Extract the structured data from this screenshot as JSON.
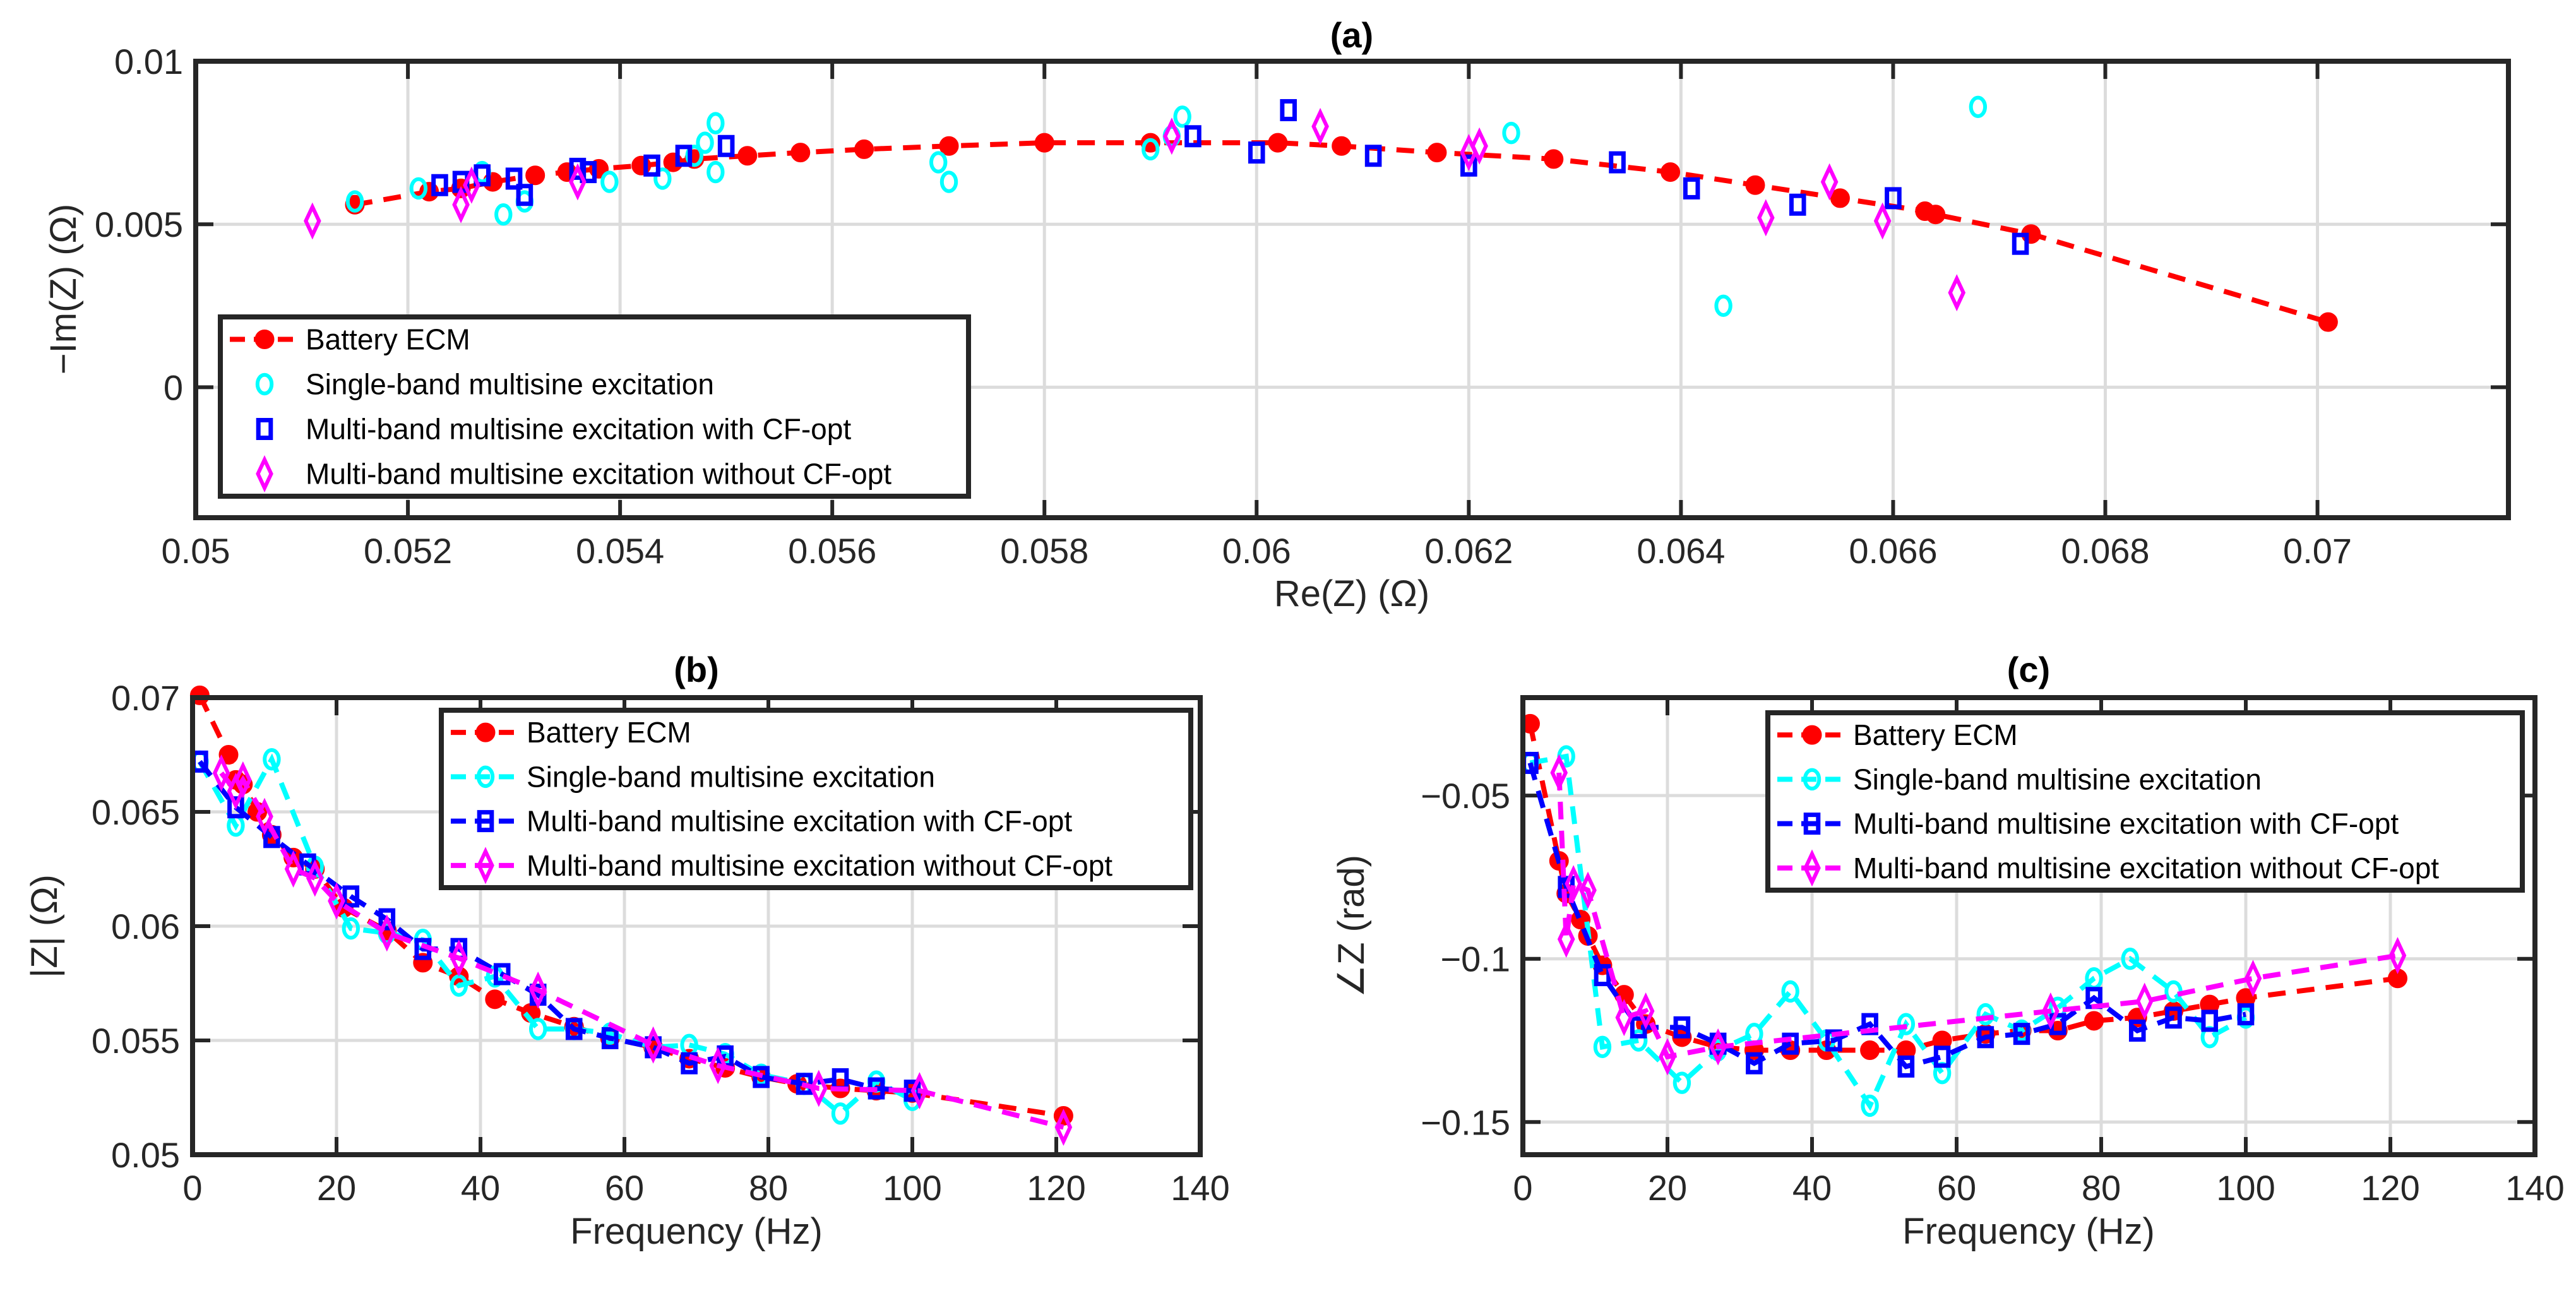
{
  "colors": {
    "ecm": "#ff0000",
    "single": "#00ffff",
    "cfopt": "#0000ff",
    "nocf": "#ff00ff",
    "grid": "#dcdcdc",
    "axis": "#262626"
  },
  "legend": [
    "Battery ECM",
    "Single-band multisine excitation",
    "Multi-band multisine excitation with CF-opt",
    "Multi-band multisine excitation without CF-opt"
  ],
  "chart_data": [
    {
      "id": "a",
      "type": "scatter",
      "title": "(a)",
      "xlabel": "Re(Z) (Ω)",
      "ylabel": "−Im(Z) (Ω)",
      "xlim": [
        0.05,
        0.0718
      ],
      "ylim": [
        -0.004,
        0.01
      ],
      "grid": true,
      "legend_placement": "bottom-left",
      "xticks": [
        0.05,
        0.052,
        0.054,
        0.056,
        0.058,
        0.06,
        0.062,
        0.064,
        0.066,
        0.068,
        0.07
      ],
      "xticklabels": [
        "0.05",
        "0.052",
        "0.054",
        "0.056",
        "0.058",
        "0.06",
        "0.062",
        "0.064",
        "0.066",
        "0.068",
        "0.07"
      ],
      "yticks": [
        0,
        0.005,
        0.01
      ],
      "yticklabels": [
        "0",
        "0.005",
        "0.01"
      ],
      "series": [
        {
          "name": "Battery ECM",
          "marker": "dot",
          "line": true,
          "color": "#ff0000",
          "x": [
            0.0515,
            0.0522,
            0.0525,
            0.0528,
            0.0532,
            0.0535,
            0.0538,
            0.0542,
            0.0545,
            0.0547,
            0.0552,
            0.0557,
            0.0563,
            0.0571,
            0.058,
            0.059,
            0.0602,
            0.0608,
            0.0617,
            0.0628,
            0.0639,
            0.0647,
            0.0655,
            0.0663,
            0.0664,
            0.0673,
            0.0701
          ],
          "y": [
            0.0056,
            0.006,
            0.0061,
            0.0063,
            0.0065,
            0.0066,
            0.0067,
            0.0068,
            0.0069,
            0.007,
            0.0071,
            0.0072,
            0.0073,
            0.0074,
            0.0075,
            0.0075,
            0.0075,
            0.0074,
            0.0072,
            0.007,
            0.0066,
            0.0062,
            0.0058,
            0.0054,
            0.0053,
            0.0047,
            0.002
          ]
        },
        {
          "name": "Single-band multisine excitation",
          "marker": "circle",
          "line": false,
          "color": "#00ffff",
          "x": [
            0.0515,
            0.0521,
            0.0527,
            0.0529,
            0.0531,
            0.0539,
            0.0544,
            0.0547,
            0.0548,
            0.0549,
            0.0549,
            0.057,
            0.0571,
            0.059,
            0.0592,
            0.0593,
            0.0624,
            0.0644,
            0.0668
          ],
          "y": [
            0.0057,
            0.0061,
            0.0066,
            0.0053,
            0.0057,
            0.0063,
            0.0064,
            0.0071,
            0.0075,
            0.0081,
            0.0066,
            0.0069,
            0.0063,
            0.0073,
            0.0077,
            0.0083,
            0.0078,
            0.0025,
            0.0086
          ]
        },
        {
          "name": "Multi-band multisine excitation with CF-opt",
          "marker": "square",
          "line": false,
          "color": "#0000ff",
          "x": [
            0.0523,
            0.0525,
            0.0527,
            0.053,
            0.0531,
            0.0536,
            0.0537,
            0.0543,
            0.0546,
            0.055,
            0.0594,
            0.06,
            0.0603,
            0.0611,
            0.062,
            0.0634,
            0.0641,
            0.0651,
            0.066,
            0.0672
          ],
          "y": [
            0.0062,
            0.0063,
            0.0065,
            0.0064,
            0.0059,
            0.0067,
            0.0066,
            0.0068,
            0.0071,
            0.0074,
            0.0077,
            0.0072,
            0.0085,
            0.0071,
            0.0068,
            0.0069,
            0.0061,
            0.0056,
            0.0058,
            0.0044
          ]
        },
        {
          "name": "Multi-band multisine excitation without CF-opt",
          "marker": "diamond",
          "line": false,
          "color": "#ff00ff",
          "x": [
            0.0511,
            0.0525,
            0.0526,
            0.0536,
            0.0592,
            0.0606,
            0.062,
            0.0621,
            0.0648,
            0.0654,
            0.0659,
            0.0666
          ],
          "y": [
            0.0051,
            0.0056,
            0.0062,
            0.0063,
            0.0077,
            0.008,
            0.0072,
            0.0074,
            0.0052,
            0.0063,
            0.0051,
            0.0029
          ]
        }
      ]
    },
    {
      "id": "b",
      "type": "line",
      "title": "(b)",
      "xlabel": "Frequency (Hz)",
      "ylabel": "|Z| (Ω)",
      "xlim": [
        0,
        140
      ],
      "ylim": [
        0.05,
        0.07
      ],
      "grid": true,
      "legend_placement": "top-right",
      "xticks": [
        0,
        20,
        40,
        60,
        80,
        100,
        120,
        140
      ],
      "xticklabels": [
        "0",
        "20",
        "40",
        "60",
        "80",
        "100",
        "120",
        "140"
      ],
      "yticks": [
        0.05,
        0.055,
        0.06,
        0.065,
        0.07
      ],
      "yticklabels": [
        "0.05",
        "0.055",
        "0.06",
        "0.065",
        "0.07"
      ],
      "series": [
        {
          "name": "Battery ECM",
          "marker": "dot",
          "line": true,
          "color": "#ff0000",
          "x": [
            1,
            5,
            6,
            7,
            9,
            11,
            14,
            17,
            21,
            27,
            32,
            37,
            42,
            47,
            53,
            58,
            64,
            69,
            74,
            79,
            84,
            90,
            95,
            100,
            121
          ],
          "y": [
            0.0701,
            0.0675,
            0.0664,
            0.0662,
            0.065,
            0.064,
            0.063,
            0.0625,
            0.0608,
            0.0598,
            0.0584,
            0.0578,
            0.0568,
            0.0562,
            0.0556,
            0.0551,
            0.0547,
            0.0542,
            0.0538,
            0.0534,
            0.0531,
            0.0529,
            0.0528,
            0.0527,
            0.0517
          ]
        },
        {
          "name": "Single-band multisine excitation",
          "marker": "circle",
          "line": true,
          "color": "#00ffff",
          "x": [
            1,
            6,
            11,
            17,
            22,
            27,
            32,
            37,
            42,
            48,
            53,
            58,
            64,
            69,
            74,
            79,
            85,
            90,
            95,
            100
          ],
          "y": [
            0.0672,
            0.0644,
            0.0673,
            0.0626,
            0.0599,
            0.0597,
            0.0594,
            0.0574,
            0.0578,
            0.0555,
            0.0555,
            0.0553,
            0.0547,
            0.0548,
            0.0544,
            0.0535,
            0.0531,
            0.0518,
            0.0532,
            0.0524
          ]
        },
        {
          "name": "Multi-band multisine excitation with CF-opt",
          "marker": "square",
          "line": true,
          "color": "#0000ff",
          "x": [
            1,
            6,
            11,
            16,
            22,
            27,
            32,
            37,
            43,
            48,
            53,
            58,
            64,
            69,
            74,
            79,
            85,
            90,
            95,
            100
          ],
          "y": [
            0.0672,
            0.0652,
            0.0639,
            0.0627,
            0.0613,
            0.0603,
            0.059,
            0.059,
            0.0579,
            0.057,
            0.0555,
            0.0551,
            0.0547,
            0.054,
            0.0543,
            0.0534,
            0.0531,
            0.0533,
            0.0529,
            0.0528
          ]
        },
        {
          "name": "Multi-band multisine excitation without CF-opt",
          "marker": "diamond",
          "line": true,
          "color": "#ff00ff",
          "x": [
            4,
            6,
            7,
            10,
            14,
            17,
            20,
            27,
            37,
            48,
            64,
            73,
            87,
            101,
            121
          ],
          "y": [
            0.0667,
            0.0659,
            0.0664,
            0.0648,
            0.0625,
            0.0621,
            0.0611,
            0.0597,
            0.0586,
            0.0572,
            0.0548,
            0.0539,
            0.0529,
            0.0528,
            0.0512
          ]
        }
      ]
    },
    {
      "id": "c",
      "type": "line",
      "title": "(c)",
      "xlabel": "Frequency (Hz)",
      "ylabel": "∠Z (rad)",
      "xlim": [
        0,
        140
      ],
      "ylim": [
        -0.16,
        -0.02
      ],
      "grid": true,
      "legend_placement": "top-right",
      "xticks": [
        0,
        20,
        40,
        60,
        80,
        100,
        120,
        140
      ],
      "xticklabels": [
        "0",
        "20",
        "40",
        "60",
        "80",
        "100",
        "120",
        "140"
      ],
      "yticks": [
        -0.15,
        -0.1,
        -0.05
      ],
      "yticklabels": [
        "−0.15",
        "−0.1",
        "−0.05"
      ],
      "series": [
        {
          "name": "Battery ECM",
          "marker": "dot",
          "line": true,
          "color": "#ff0000",
          "x": [
            1,
            5,
            6,
            8,
            9,
            11,
            14,
            17,
            22,
            27,
            32,
            37,
            42,
            48,
            53,
            58,
            64,
            69,
            74,
            79,
            85,
            90,
            95,
            100,
            121
          ],
          "y": [
            -0.028,
            -0.07,
            -0.08,
            -0.088,
            -0.093,
            -0.102,
            -0.111,
            -0.12,
            -0.124,
            -0.127,
            -0.128,
            -0.128,
            -0.128,
            -0.128,
            -0.128,
            -0.125,
            -0.123,
            -0.122,
            -0.122,
            -0.119,
            -0.118,
            -0.116,
            -0.114,
            -0.112,
            -0.106
          ]
        },
        {
          "name": "Single-band multisine excitation",
          "marker": "circle",
          "line": true,
          "color": "#00ffff",
          "x": [
            1,
            6,
            11,
            16,
            22,
            27,
            32,
            37,
            42,
            48,
            53,
            58,
            64,
            69,
            74,
            79,
            84,
            90,
            95,
            100
          ],
          "y": [
            -0.04,
            -0.038,
            -0.127,
            -0.125,
            -0.138,
            -0.128,
            -0.123,
            -0.11,
            -0.125,
            -0.145,
            -0.12,
            -0.135,
            -0.117,
            -0.122,
            -0.115,
            -0.106,
            -0.1,
            -0.11,
            -0.124,
            -0.118
          ]
        },
        {
          "name": "Multi-band multisine excitation with CF-opt",
          "marker": "square",
          "line": true,
          "color": "#0000ff",
          "x": [
            1,
            6,
            11,
            16,
            22,
            27,
            32,
            37,
            43,
            48,
            53,
            58,
            64,
            69,
            74,
            79,
            85,
            90,
            95,
            100
          ],
          "y": [
            -0.04,
            -0.078,
            -0.105,
            -0.121,
            -0.121,
            -0.126,
            -0.132,
            -0.126,
            -0.125,
            -0.12,
            -0.133,
            -0.13,
            -0.124,
            -0.123,
            -0.12,
            -0.112,
            -0.122,
            -0.118,
            -0.119,
            -0.117
          ]
        },
        {
          "name": "Multi-band multisine excitation without CF-opt",
          "marker": "diamond",
          "line": true,
          "color": "#ff00ff",
          "x": [
            5,
            6,
            7,
            9,
            14,
            17,
            20,
            27,
            73,
            86,
            101,
            121
          ],
          "y": [
            -0.043,
            -0.094,
            -0.077,
            -0.079,
            -0.118,
            -0.116,
            -0.13,
            -0.127,
            -0.116,
            -0.113,
            -0.106,
            -0.099
          ]
        }
      ]
    }
  ]
}
